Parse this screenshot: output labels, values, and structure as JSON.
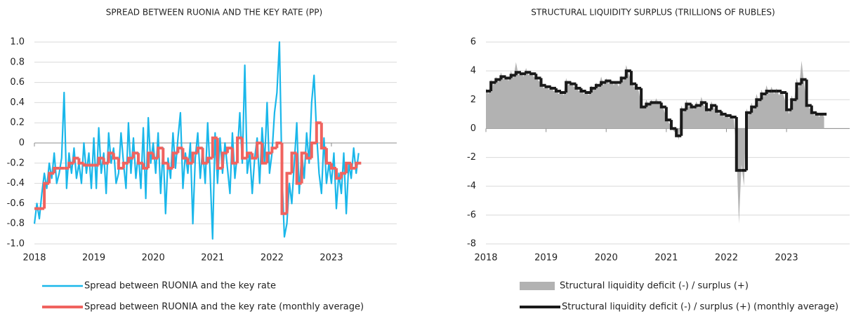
{
  "chart_data": [
    {
      "type": "line",
      "title": "SPREAD BETWEEN RUONIA AND THE KEY RATE (PP)",
      "xlim": [
        2018,
        2024.1
      ],
      "xticks": [
        2018,
        2019,
        2020,
        2021,
        2022,
        2023
      ],
      "ylim": [
        -1,
        1
      ],
      "yticks": [
        {
          "value": -1,
          "label": "-1.0"
        },
        -0.8,
        -0.6,
        -0.4,
        -0.2,
        0,
        0.2,
        0.4,
        0.6,
        0.8,
        {
          "value": 1,
          "label": "1.0"
        }
      ],
      "grid": true,
      "legend": "bottom",
      "series": [
        {
          "name": "Spread between RUONIA and the key rate",
          "type": "line",
          "color": "#1ab7ea",
          "x": [
            2018,
            2018.042,
            2018.083,
            2018.125,
            2018.167,
            2018.208,
            2018.25,
            2018.292,
            2018.333,
            2018.375,
            2018.417,
            2018.458,
            2018.5,
            2018.542,
            2018.583,
            2018.625,
            2018.667,
            2018.708,
            2018.75,
            2018.792,
            2018.833,
            2018.875,
            2018.917,
            2018.958,
            2019,
            2019.042,
            2019.083,
            2019.125,
            2019.167,
            2019.208,
            2019.25,
            2019.292,
            2019.333,
            2019.375,
            2019.417,
            2019.458,
            2019.5,
            2019.542,
            2019.583,
            2019.625,
            2019.667,
            2019.708,
            2019.75,
            2019.792,
            2019.833,
            2019.875,
            2019.917,
            2019.958,
            2020,
            2020.042,
            2020.083,
            2020.125,
            2020.167,
            2020.208,
            2020.25,
            2020.292,
            2020.333,
            2020.375,
            2020.417,
            2020.458,
            2020.5,
            2020.542,
            2020.583,
            2020.625,
            2020.667,
            2020.708,
            2020.75,
            2020.792,
            2020.833,
            2020.875,
            2020.917,
            2020.958,
            2021,
            2021.042,
            2021.083,
            2021.125,
            2021.167,
            2021.208,
            2021.25,
            2021.292,
            2021.333,
            2021.375,
            2021.417,
            2021.458,
            2021.5,
            2021.542,
            2021.583,
            2021.625,
            2021.667,
            2021.708,
            2021.75,
            2021.792,
            2021.833,
            2021.875,
            2021.917,
            2021.958,
            2022,
            2022.042,
            2022.083,
            2022.125,
            2022.167,
            2022.208,
            2022.25,
            2022.292,
            2022.333,
            2022.375,
            2022.417,
            2022.458,
            2022.5,
            2022.542,
            2022.583,
            2022.625,
            2022.667,
            2022.708,
            2022.75,
            2022.792,
            2022.833,
            2022.875,
            2022.917,
            2022.958,
            2023,
            2023.042,
            2023.083,
            2023.125,
            2023.167,
            2023.208,
            2023.25,
            2023.292,
            2023.333,
            2023.375,
            2023.417,
            2023.458
          ],
          "values": [
            -0.8,
            -0.6,
            -0.75,
            -0.5,
            -0.3,
            -0.45,
            -0.2,
            -0.35,
            -0.1,
            -0.4,
            -0.3,
            -0.15,
            0.5,
            -0.45,
            -0.1,
            -0.3,
            -0.05,
            -0.35,
            -0.2,
            -0.4,
            0.0,
            -0.3,
            -0.1,
            -0.45,
            0.05,
            -0.45,
            0.15,
            -0.3,
            -0.1,
            -0.5,
            0.1,
            -0.2,
            -0.05,
            -0.4,
            -0.3,
            0.1,
            -0.2,
            -0.45,
            0.2,
            -0.3,
            0.05,
            -0.35,
            -0.1,
            -0.45,
            0.15,
            -0.55,
            0.25,
            -0.2,
            0.0,
            -0.3,
            0.1,
            -0.5,
            -0.05,
            -0.7,
            -0.15,
            -0.35,
            0.1,
            -0.25,
            0.05,
            0.3,
            -0.45,
            -0.1,
            -0.3,
            0.0,
            -0.8,
            -0.15,
            0.1,
            -0.35,
            -0.05,
            -0.4,
            0.2,
            -0.3,
            -0.95,
            0.1,
            -0.4,
            0.05,
            -0.3,
            0.0,
            -0.25,
            -0.5,
            0.1,
            -0.35,
            -0.1,
            0.3,
            -0.2,
            0.77,
            -0.3,
            -0.1,
            -0.5,
            -0.15,
            0.05,
            -0.4,
            0.15,
            -0.2,
            0.4,
            -0.3,
            -0.1,
            0.3,
            0.5,
            1.0,
            -0.3,
            -0.93,
            -0.8,
            -0.4,
            -0.6,
            -0.2,
            0.2,
            -0.5,
            -0.1,
            -0.35,
            0.1,
            -0.2,
            0.4,
            0.67,
            0.1,
            -0.3,
            -0.5,
            0.05,
            -0.4,
            -0.2,
            -0.4,
            -0.1,
            -0.65,
            -0.3,
            -0.5,
            -0.1,
            -0.7,
            -0.2,
            -0.35,
            -0.05,
            -0.3,
            -0.1
          ]
        },
        {
          "name": "Spread between RUONIA and the key rate (monthly average)",
          "type": "step",
          "color": "#f0635f",
          "x": [
            2018,
            2018.083,
            2018.167,
            2018.25,
            2018.333,
            2018.417,
            2018.5,
            2018.583,
            2018.667,
            2018.75,
            2018.833,
            2018.917,
            2019,
            2019.083,
            2019.167,
            2019.25,
            2019.333,
            2019.417,
            2019.5,
            2019.583,
            2019.667,
            2019.75,
            2019.833,
            2019.917,
            2020,
            2020.083,
            2020.167,
            2020.25,
            2020.333,
            2020.417,
            2020.5,
            2020.583,
            2020.667,
            2020.75,
            2020.833,
            2020.917,
            2021,
            2021.083,
            2021.167,
            2021.25,
            2021.333,
            2021.417,
            2021.5,
            2021.583,
            2021.667,
            2021.75,
            2021.833,
            2021.917,
            2022,
            2022.083,
            2022.167,
            2022.25,
            2022.333,
            2022.417,
            2022.5,
            2022.583,
            2022.667,
            2022.75,
            2022.833,
            2022.917,
            2023,
            2023.083,
            2023.167,
            2023.25,
            2023.333,
            2023.417
          ],
          "values": [
            -0.65,
            -0.65,
            -0.4,
            -0.3,
            -0.25,
            -0.25,
            -0.25,
            -0.2,
            -0.15,
            -0.2,
            -0.22,
            -0.22,
            -0.22,
            -0.15,
            -0.2,
            -0.1,
            -0.15,
            -0.25,
            -0.2,
            -0.15,
            -0.1,
            -0.2,
            -0.25,
            -0.1,
            -0.15,
            -0.05,
            -0.2,
            -0.25,
            -0.1,
            -0.05,
            -0.15,
            -0.2,
            -0.1,
            -0.05,
            -0.2,
            -0.15,
            0.05,
            -0.25,
            -0.1,
            -0.05,
            -0.2,
            0.05,
            -0.15,
            -0.1,
            -0.15,
            0.0,
            -0.2,
            -0.1,
            -0.05,
            0.0,
            -0.7,
            -0.3,
            -0.1,
            -0.4,
            -0.1,
            -0.15,
            0.0,
            0.2,
            -0.05,
            -0.2,
            -0.25,
            -0.35,
            -0.3,
            -0.2,
            -0.25,
            -0.2
          ]
        }
      ]
    },
    {
      "type": "line",
      "title": "STRUCTURAL LIQUIDITY SURPLUS (TRILLIONS OF RUBLES)",
      "xlim": [
        2018,
        2024.05
      ],
      "xticks": [
        2018,
        2019,
        2020,
        2021,
        2022,
        2023
      ],
      "ylim": [
        -8,
        6
      ],
      "yticks": [
        -8,
        -6,
        -4,
        -2,
        0,
        2,
        4,
        6
      ],
      "grid": true,
      "legend": "bottom",
      "series": [
        {
          "name": "Structural liquidity deficit (-) / surplus (+)",
          "type": "area",
          "color": "#b2b2b2",
          "x": [
            2018,
            2018.042,
            2018.083,
            2018.125,
            2018.167,
            2018.208,
            2018.25,
            2018.292,
            2018.333,
            2018.375,
            2018.417,
            2018.458,
            2018.5,
            2018.542,
            2018.583,
            2018.625,
            2018.667,
            2018.708,
            2018.75,
            2018.792,
            2018.833,
            2018.875,
            2018.917,
            2018.958,
            2019,
            2019.042,
            2019.083,
            2019.125,
            2019.167,
            2019.208,
            2019.25,
            2019.292,
            2019.333,
            2019.375,
            2019.417,
            2019.458,
            2019.5,
            2019.542,
            2019.583,
            2019.625,
            2019.667,
            2019.708,
            2019.75,
            2019.792,
            2019.833,
            2019.875,
            2019.917,
            2019.958,
            2020,
            2020.042,
            2020.083,
            2020.125,
            2020.167,
            2020.208,
            2020.25,
            2020.292,
            2020.333,
            2020.375,
            2020.417,
            2020.458,
            2020.5,
            2020.542,
            2020.583,
            2020.625,
            2020.667,
            2020.708,
            2020.75,
            2020.792,
            2020.833,
            2020.875,
            2020.917,
            2020.958,
            2021,
            2021.042,
            2021.083,
            2021.125,
            2021.167,
            2021.208,
            2021.25,
            2021.292,
            2021.333,
            2021.375,
            2021.417,
            2021.458,
            2021.5,
            2021.542,
            2021.583,
            2021.625,
            2021.667,
            2021.708,
            2021.75,
            2021.792,
            2021.833,
            2021.875,
            2021.917,
            2021.958,
            2022,
            2022.042,
            2022.083,
            2022.125,
            2022.167,
            2022.208,
            2022.25,
            2022.292,
            2022.333,
            2022.375,
            2022.417,
            2022.458,
            2022.5,
            2022.542,
            2022.583,
            2022.625,
            2022.667,
            2022.708,
            2022.75,
            2022.792,
            2022.833,
            2022.875,
            2022.917,
            2022.958,
            2023,
            2023.042,
            2023.083,
            2023.125,
            2023.167,
            2023.208,
            2023.25,
            2023.292,
            2023.333,
            2023.375,
            2023.417,
            2023.458,
            2023.5,
            2023.542,
            2023.583,
            2023.625
          ],
          "values": [
            2.8,
            2.4,
            3.4,
            3.0,
            3.6,
            3.2,
            3.9,
            3.4,
            3.6,
            3.3,
            4.0,
            3.5,
            4.6,
            3.7,
            3.9,
            3.6,
            4.2,
            3.7,
            3.9,
            3.6,
            3.6,
            3.3,
            3.2,
            2.8,
            3.0,
            2.7,
            2.9,
            2.6,
            2.7,
            2.4,
            2.6,
            2.3,
            3.5,
            3.0,
            3.3,
            2.9,
            2.9,
            2.6,
            2.8,
            2.4,
            2.6,
            2.3,
            3.0,
            2.7,
            3.2,
            2.9,
            3.6,
            3.0,
            3.5,
            3.1,
            3.4,
            3.0,
            3.3,
            2.9,
            3.7,
            3.3,
            4.4,
            3.8,
            3.3,
            2.9,
            3.0,
            2.6,
            1.6,
            1.4,
            2.0,
            1.6,
            2.0,
            1.7,
            2.1,
            1.7,
            1.7,
            1.3,
            0.8,
            0.4,
            0.2,
            -0.2,
            -0.3,
            -0.8,
            1.6,
            1.1,
            2.0,
            1.5,
            1.8,
            1.3,
            1.9,
            1.4,
            2.2,
            1.6,
            1.5,
            1.1,
            1.9,
            1.4,
            1.4,
            1.0,
            1.3,
            0.8,
            1.1,
            0.7,
            1.0,
            0.6,
            -1.5,
            -6.6,
            -2.5,
            -4.0,
            1.4,
            0.9,
            1.8,
            1.3,
            2.4,
            1.8,
            2.7,
            2.2,
            3.0,
            2.4,
            2.9,
            2.4,
            2.8,
            2.3,
            2.7,
            2.2,
            1.6,
            1.0,
            2.3,
            1.8,
            3.5,
            2.8,
            4.7,
            3.1,
            1.9,
            1.4,
            1.4,
            0.9,
            1.2,
            0.8,
            1.1,
            0.8
          ]
        },
        {
          "name": "Structural liquidity deficit (-) / surplus (+) (monthly average)",
          "type": "step",
          "color": "#1a1a1a",
          "x": [
            2018,
            2018.083,
            2018.167,
            2018.25,
            2018.333,
            2018.417,
            2018.5,
            2018.583,
            2018.667,
            2018.75,
            2018.833,
            2018.917,
            2019,
            2019.083,
            2019.167,
            2019.25,
            2019.333,
            2019.417,
            2019.5,
            2019.583,
            2019.667,
            2019.75,
            2019.833,
            2019.917,
            2020,
            2020.083,
            2020.167,
            2020.25,
            2020.333,
            2020.417,
            2020.5,
            2020.583,
            2020.667,
            2020.75,
            2020.833,
            2020.917,
            2021,
            2021.083,
            2021.167,
            2021.25,
            2021.333,
            2021.417,
            2021.5,
            2021.583,
            2021.667,
            2021.75,
            2021.833,
            2021.917,
            2022,
            2022.083,
            2022.167,
            2022.25,
            2022.333,
            2022.417,
            2022.5,
            2022.583,
            2022.667,
            2022.75,
            2022.833,
            2022.917,
            2023,
            2023.083,
            2023.167,
            2023.25,
            2023.333,
            2023.417,
            2023.5,
            2023.583
          ],
          "values": [
            2.6,
            3.2,
            3.4,
            3.6,
            3.5,
            3.7,
            3.9,
            3.8,
            3.9,
            3.8,
            3.5,
            3.0,
            2.9,
            2.8,
            2.6,
            2.5,
            3.2,
            3.1,
            2.8,
            2.6,
            2.5,
            2.8,
            3.0,
            3.2,
            3.3,
            3.2,
            3.2,
            3.5,
            4.0,
            3.1,
            2.8,
            1.5,
            1.7,
            1.8,
            1.8,
            1.5,
            0.6,
            0.0,
            -0.5,
            1.3,
            1.7,
            1.5,
            1.6,
            1.8,
            1.3,
            1.6,
            1.2,
            1.0,
            0.9,
            0.8,
            -2.9,
            -2.9,
            1.1,
            1.5,
            2.0,
            2.4,
            2.6,
            2.6,
            2.6,
            2.5,
            1.3,
            2.0,
            3.1,
            3.4,
            1.6,
            1.1,
            1.0,
            1.0
          ]
        }
      ]
    }
  ]
}
